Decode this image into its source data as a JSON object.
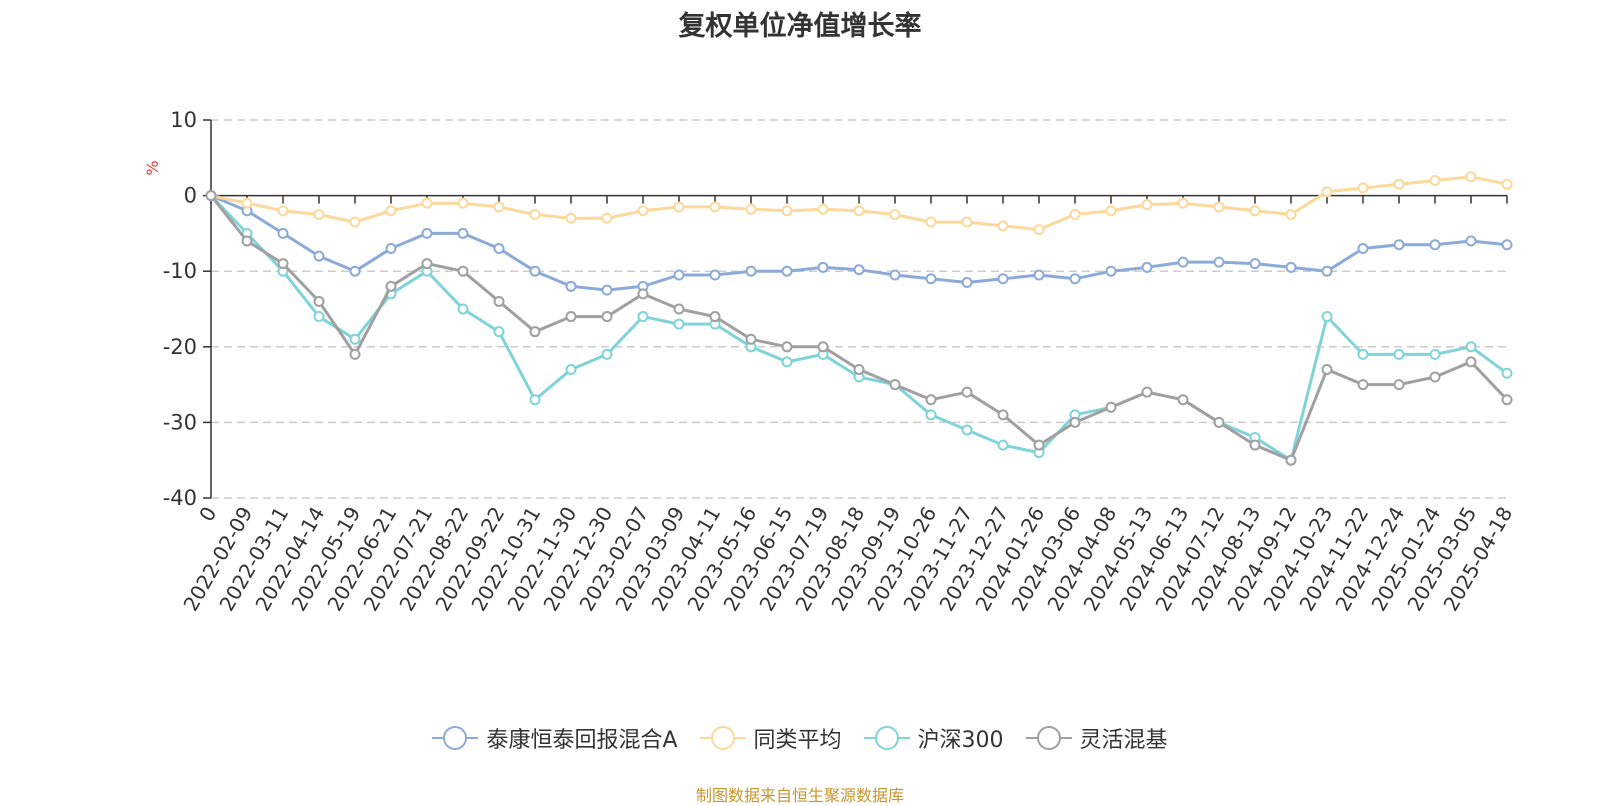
{
  "chart_data": {
    "type": "line",
    "title": "复权单位净值增长率",
    "ylabel": "%",
    "ylim": [
      -40,
      10
    ],
    "yticks": [
      "10",
      "0",
      "-10",
      "-20",
      "-30",
      "-40"
    ],
    "x_tick_labels": [
      "0",
      "2022-02-09",
      "2022-03-11",
      "2022-04-14",
      "2022-05-19",
      "2022-06-21",
      "2022-07-21",
      "2022-08-22",
      "2022-09-22",
      "2022-10-31",
      "2022-11-30",
      "2022-12-30",
      "2023-02-07",
      "2023-03-09",
      "2023-04-11",
      "2023-05-16",
      "2023-06-15",
      "2023-07-19",
      "2023-08-18",
      "2023-09-19",
      "2023-10-26",
      "2023-11-27",
      "2023-12-27",
      "2024-01-26",
      "2024-03-06",
      "2024-04-08",
      "2024-05-13",
      "2024-06-13",
      "2024-07-12",
      "2024-08-13",
      "2024-09-12",
      "2024-10-23",
      "2024-11-22",
      "2024-12-24",
      "2025-01-24",
      "2025-03-05",
      "2025-04-18"
    ],
    "grid": true,
    "legend_position": "bottom",
    "series": [
      {
        "name": "泰康恒泰回报混合A",
        "color": "#8caad8",
        "values": [
          0,
          -2,
          -5,
          -8,
          -10,
          -7,
          -5,
          -5,
          -7,
          -10,
          -12,
          -12.5,
          -12,
          -10.5,
          -10.5,
          -10,
          -10,
          -9.5,
          -9.8,
          -10.5,
          -11,
          -11.5,
          -11,
          -10.5,
          -11,
          -10,
          -9.5,
          -8.8,
          -8.8,
          -9,
          -9.5,
          -10,
          -7,
          -6.5,
          -6.5,
          -6,
          -6.5
        ]
      },
      {
        "name": "同类平均",
        "color": "#fdd89b",
        "values": [
          0,
          -1,
          -2,
          -2.5,
          -3.5,
          -2,
          -1,
          -1,
          -1.5,
          -2.5,
          -3,
          -3,
          -2,
          -1.5,
          -1.5,
          -1.8,
          -2,
          -1.8,
          -2,
          -2.5,
          -3.5,
          -3.5,
          -4,
          -4.5,
          -2.5,
          -2,
          -1.2,
          -1,
          -1.5,
          -2,
          -2.5,
          0.5,
          1,
          1.5,
          2,
          2.5,
          1.5
        ]
      },
      {
        "name": "沪深300",
        "color": "#7fd3d9",
        "values": [
          0,
          -5,
          -10,
          -16,
          -19,
          -13,
          -10,
          -15,
          -18,
          -27,
          -23,
          -21,
          -16,
          -17,
          -17,
          -20,
          -22,
          -21,
          -24,
          -25,
          -29,
          -31,
          -33,
          -34,
          -29,
          -28,
          -26,
          -27,
          -30,
          -32,
          -35,
          -16,
          -21,
          -21,
          -21,
          -20,
          -23.5
        ]
      },
      {
        "name": "灵活混基",
        "color": "#a0a0a0",
        "values": [
          0,
          -6,
          -9,
          -14,
          -21,
          -12,
          -9,
          -10,
          -14,
          -18,
          -16,
          -16,
          -13,
          -15,
          -16,
          -19,
          -20,
          -20,
          -23,
          -25,
          -27,
          -26,
          -29,
          -33,
          -30,
          -28,
          -26,
          -27,
          -30,
          -33,
          -35,
          -23,
          -25,
          -25,
          -24,
          -22,
          -27
        ]
      }
    ]
  },
  "legend_label": "泰康恒泰回报混合A",
  "source_text": "制图数据来自恒生聚源数据库",
  "source_color": "#c8962e"
}
